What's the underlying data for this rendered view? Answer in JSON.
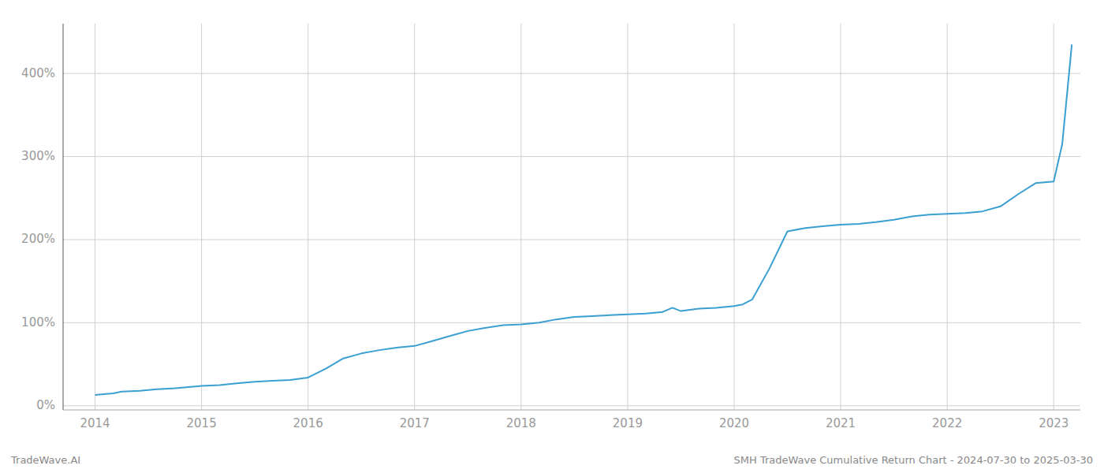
{
  "chart_data": {
    "type": "line",
    "annotations": [
      "TradeWave.AI",
      "SMH TradeWave Cumulative Return Chart - 2024-07-30 to 2025-03-30"
    ],
    "x": [
      2014.0,
      2014.08,
      2014.17,
      2014.25,
      2014.42,
      2014.58,
      2014.75,
      2014.92,
      2015.0,
      2015.17,
      2015.33,
      2015.5,
      2015.67,
      2015.83,
      2016.0,
      2016.17,
      2016.33,
      2016.5,
      2016.67,
      2016.83,
      2017.0,
      2017.17,
      2017.33,
      2017.5,
      2017.67,
      2017.83,
      2018.0,
      2018.17,
      2018.33,
      2018.5,
      2018.67,
      2018.83,
      2019.0,
      2019.17,
      2019.33,
      2019.42,
      2019.5,
      2019.67,
      2019.83,
      2020.0,
      2020.08,
      2020.17,
      2020.33,
      2020.5,
      2020.67,
      2020.83,
      2021.0,
      2021.17,
      2021.33,
      2021.5,
      2021.67,
      2021.83,
      2022.0,
      2022.17,
      2022.33,
      2022.5,
      2022.67,
      2022.83,
      2023.0,
      2023.08,
      2023.17
    ],
    "values": [
      13,
      14,
      15,
      17,
      18,
      20,
      21,
      23,
      24,
      25,
      27,
      29,
      30,
      31,
      34,
      45,
      57,
      63,
      67,
      70,
      72,
      78,
      84,
      90,
      94,
      97,
      98,
      100,
      104,
      107,
      108,
      109,
      110,
      111,
      113,
      118,
      114,
      117,
      118,
      120,
      122,
      128,
      165,
      210,
      214,
      216,
      218,
      219,
      221,
      224,
      228,
      230,
      231,
      232,
      234,
      240,
      255,
      268,
      270,
      315,
      435
    ],
    "color": "#3a9fd1",
    "xlim": [
      2013.7,
      2023.25
    ],
    "ylim": [
      -5,
      460
    ],
    "xticks": [
      2014,
      2015,
      2016,
      2017,
      2018,
      2019,
      2020,
      2021,
      2022,
      2023
    ],
    "yticks": [
      {
        "value": 0,
        "label": "0%"
      },
      {
        "value": 100,
        "label": "100%"
      },
      {
        "value": 200,
        "label": "200%"
      },
      {
        "value": 300,
        "label": "300%"
      },
      {
        "value": 400,
        "label": "400%"
      }
    ],
    "grid": true
  }
}
